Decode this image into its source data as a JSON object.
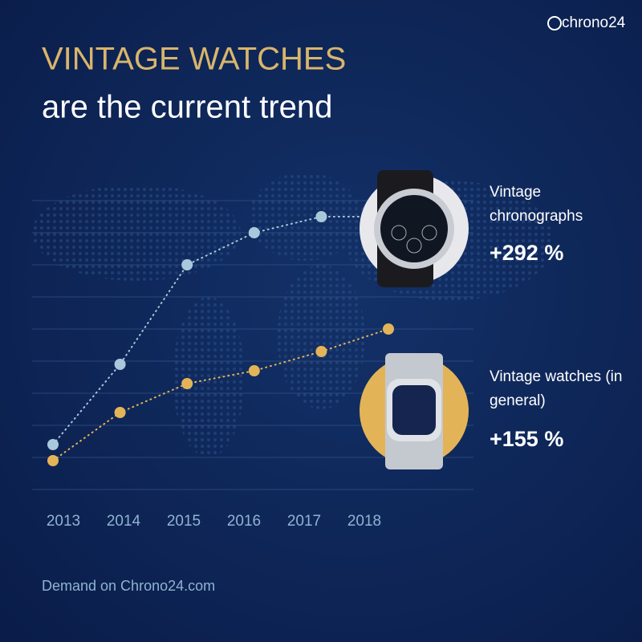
{
  "chart_data": {
    "type": "line",
    "brand": "chrono24",
    "title": "VINTAGE WATCHES",
    "subtitle": "are the current trend",
    "footer": "Demand on Chrono24.com",
    "categories": [
      "2013",
      "2014",
      "2015",
      "2016",
      "2017",
      "2018"
    ],
    "series": [
      {
        "name": "Vintage chronographs",
        "color": "#a9c8dc",
        "values": [
          1.4,
          3.9,
          7.0,
          8.0,
          8.5,
          null
        ],
        "annotation": "+292 %"
      },
      {
        "name": "Vintage watches (in general)",
        "color": "#e3b457",
        "values": [
          0.9,
          2.4,
          3.3,
          3.7,
          4.3,
          5.0
        ],
        "annotation": "+155 %"
      }
    ],
    "ylim": [
      0,
      9
    ],
    "grid": true
  }
}
